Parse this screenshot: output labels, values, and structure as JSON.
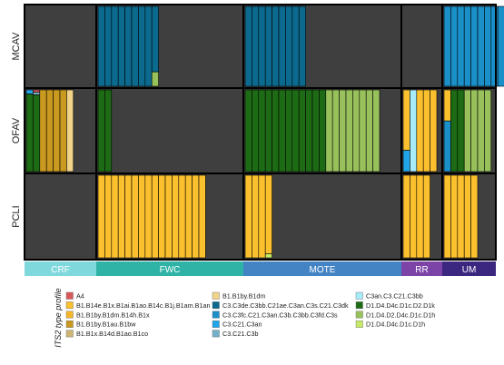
{
  "chart_data": {
    "type": "stacked-bar-panels",
    "rows": [
      "MCAV",
      "OFAV",
      "PCLI"
    ],
    "columns": [
      {
        "name": "CRF",
        "color": "#7fd8dc"
      },
      {
        "name": "FWC",
        "color": "#2fb3a6"
      },
      {
        "name": "MOTE",
        "color": "#4484c4"
      },
      {
        "name": "RR",
        "color": "#7d44a8"
      },
      {
        "name": "UM",
        "color": "#3b2680"
      }
    ],
    "legend_title": "ITS2 type profile",
    "profiles": [
      {
        "name": "A4",
        "color": "#d9595a"
      },
      {
        "name": "B1.B14e.B1x.B1ai.B1ao.B14c.B1j.B1am.B1an",
        "color": "#fbc02d"
      },
      {
        "name": "B1.B1by.B1dm.B14h.B1x",
        "color": "#f5b62a"
      },
      {
        "name": "B1.B1by.B1au.B1bw",
        "color": "#c99a1f"
      },
      {
        "name": "B1.B1x.B14d.B1ao.B1co",
        "color": "#cdb574"
      },
      {
        "name": "B1.B1by.B1dm",
        "color": "#f1d48a"
      },
      {
        "name": "C3.C3de.C3bb.C21ae.C3an.C3s.C21.C3dk",
        "color": "#0b6a8e"
      },
      {
        "name": "C3.C3fc.C21.C3an.C3b.C3bb.C3fd.C3s",
        "color": "#1a8fc8"
      },
      {
        "name": "C3.C21.C3an",
        "color": "#20a6e8"
      },
      {
        "name": "C3.C21.C3b",
        "color": "#74b0c9"
      },
      {
        "name": "C3an.C3.C21.C3bb",
        "color": "#a6ecf9"
      },
      {
        "name": "D1.D4.D4c.D1c.D2.D1k",
        "color": "#1e6b15"
      },
      {
        "name": "D1.D4.D2.D4c.D1c.D1h",
        "color": "#98c15b"
      },
      {
        "name": "D1.D4.D4c.D1c.D1h",
        "color": "#c6ea66"
      }
    ],
    "background_color": "#3f3f3f",
    "panels": [
      {
        "row": 0,
        "col": 0,
        "samples": []
      },
      {
        "row": 0,
        "col": 1,
        "samples": [
          [
            {
              "p": 6,
              "v": 1
            }
          ],
          [
            {
              "p": 6,
              "v": 1
            }
          ],
          [
            {
              "p": 6,
              "v": 1
            }
          ],
          [
            {
              "p": 6,
              "v": 1
            }
          ],
          [
            {
              "p": 6,
              "v": 1
            }
          ],
          [
            {
              "p": 6,
              "v": 1
            }
          ],
          [
            {
              "p": 6,
              "v": 1
            }
          ],
          [
            {
              "p": 6,
              "v": 1
            }
          ],
          [
            {
              "p": 6,
              "v": 0.82
            },
            {
              "p": 12,
              "v": 0.18
            }
          ]
        ]
      },
      {
        "row": 0,
        "col": 2,
        "samples": [
          [
            {
              "p": 6,
              "v": 1
            }
          ],
          [
            {
              "p": 6,
              "v": 1
            }
          ],
          [
            {
              "p": 6,
              "v": 1
            }
          ],
          [
            {
              "p": 6,
              "v": 1
            }
          ],
          [
            {
              "p": 6,
              "v": 1
            }
          ],
          [
            {
              "p": 6,
              "v": 1
            }
          ],
          [
            {
              "p": 6,
              "v": 1
            }
          ],
          [
            {
              "p": 6,
              "v": 1
            }
          ],
          [
            {
              "p": 6,
              "v": 1
            }
          ]
        ]
      },
      {
        "row": 0,
        "col": 3,
        "samples": []
      },
      {
        "row": 0,
        "col": 4,
        "samples": [
          [
            {
              "p": 7,
              "v": 1
            }
          ],
          [
            {
              "p": 7,
              "v": 1
            }
          ],
          [
            {
              "p": 7,
              "v": 1
            }
          ],
          [
            {
              "p": 7,
              "v": 1
            }
          ],
          [
            {
              "p": 7,
              "v": 1
            }
          ],
          [
            {
              "p": 7,
              "v": 1
            }
          ],
          [
            {
              "p": 7,
              "v": 1
            }
          ],
          [
            {
              "p": 7,
              "v": 1
            }
          ],
          [
            {
              "p": 7,
              "v": 1
            }
          ]
        ]
      },
      {
        "row": 1,
        "col": 0,
        "samples": [
          [
            {
              "p": 8,
              "v": 0.05
            },
            {
              "p": 11,
              "v": 0.95
            }
          ],
          [
            {
              "p": 0,
              "v": 0.03
            },
            {
              "p": 9,
              "v": 0.03
            },
            {
              "p": 11,
              "v": 0.94
            }
          ],
          [
            {
              "p": 3,
              "v": 1
            }
          ],
          [
            {
              "p": 3,
              "v": 1
            }
          ],
          [
            {
              "p": 3,
              "v": 1
            }
          ],
          [
            {
              "p": 3,
              "v": 1
            }
          ],
          [
            {
              "p": 5,
              "v": 1
            }
          ]
        ]
      },
      {
        "row": 1,
        "col": 1,
        "samples": [
          [
            {
              "p": 11,
              "v": 1
            }
          ],
          [
            {
              "p": 11,
              "v": 1
            }
          ]
        ]
      },
      {
        "row": 1,
        "col": 2,
        "samples": [
          [
            {
              "p": 11,
              "v": 1
            }
          ],
          [
            {
              "p": 11,
              "v": 1
            }
          ],
          [
            {
              "p": 11,
              "v": 1
            }
          ],
          [
            {
              "p": 11,
              "v": 1
            }
          ],
          [
            {
              "p": 11,
              "v": 1
            }
          ],
          [
            {
              "p": 11,
              "v": 1
            }
          ],
          [
            {
              "p": 11,
              "v": 1
            }
          ],
          [
            {
              "p": 11,
              "v": 1
            }
          ],
          [
            {
              "p": 11,
              "v": 1
            }
          ],
          [
            {
              "p": 11,
              "v": 1
            }
          ],
          [
            {
              "p": 11,
              "v": 1
            }
          ],
          [
            {
              "p": 11,
              "v": 1
            }
          ],
          [
            {
              "p": 12,
              "v": 1
            }
          ],
          [
            {
              "p": 12,
              "v": 1
            }
          ],
          [
            {
              "p": 12,
              "v": 1
            }
          ],
          [
            {
              "p": 12,
              "v": 1
            }
          ],
          [
            {
              "p": 12,
              "v": 1
            }
          ],
          [
            {
              "p": 12,
              "v": 1
            }
          ],
          [
            {
              "p": 12,
              "v": 1
            }
          ],
          [
            {
              "p": 12,
              "v": 1
            }
          ]
        ]
      },
      {
        "row": 1,
        "col": 3,
        "samples": [
          [
            {
              "p": 1,
              "v": 0.74
            },
            {
              "p": 8,
              "v": 0.26
            }
          ],
          [
            {
              "p": 10,
              "v": 1
            }
          ],
          [
            {
              "p": 1,
              "v": 1
            }
          ],
          [
            {
              "p": 1,
              "v": 1
            }
          ],
          [
            {
              "p": 1,
              "v": 1
            }
          ]
        ]
      },
      {
        "row": 1,
        "col": 4,
        "samples": [
          [
            {
              "p": 1,
              "v": 0.38
            },
            {
              "p": 7,
              "v": 0.62
            }
          ],
          [
            {
              "p": 11,
              "v": 1
            }
          ],
          [
            {
              "p": 11,
              "v": 1
            }
          ],
          [
            {
              "p": 12,
              "v": 1
            }
          ],
          [
            {
              "p": 12,
              "v": 1
            }
          ],
          [
            {
              "p": 12,
              "v": 1
            }
          ],
          [
            {
              "p": 12,
              "v": 1
            }
          ]
        ]
      },
      {
        "row": 2,
        "col": 0,
        "samples": []
      },
      {
        "row": 2,
        "col": 1,
        "samples": [
          [
            {
              "p": 1,
              "v": 1
            }
          ],
          [
            {
              "p": 1,
              "v": 1
            }
          ],
          [
            {
              "p": 1,
              "v": 1
            }
          ],
          [
            {
              "p": 1,
              "v": 1
            }
          ],
          [
            {
              "p": 1,
              "v": 1
            }
          ],
          [
            {
              "p": 1,
              "v": 1
            }
          ],
          [
            {
              "p": 1,
              "v": 1
            }
          ],
          [
            {
              "p": 1,
              "v": 1
            }
          ],
          [
            {
              "p": 1,
              "v": 1
            }
          ],
          [
            {
              "p": 1,
              "v": 1
            }
          ],
          [
            {
              "p": 1,
              "v": 1
            }
          ],
          [
            {
              "p": 1,
              "v": 1
            }
          ],
          [
            {
              "p": 1,
              "v": 1
            }
          ],
          [
            {
              "p": 1,
              "v": 1
            }
          ],
          [
            {
              "p": 1,
              "v": 1
            }
          ],
          [
            {
              "p": 1,
              "v": 1
            }
          ]
        ]
      },
      {
        "row": 2,
        "col": 2,
        "samples": [
          [
            {
              "p": 1,
              "v": 1
            }
          ],
          [
            {
              "p": 1,
              "v": 1
            }
          ],
          [
            {
              "p": 1,
              "v": 1
            }
          ],
          [
            {
              "p": 1,
              "v": 0.95
            },
            {
              "p": 13,
              "v": 0.05
            }
          ]
        ]
      },
      {
        "row": 2,
        "col": 3,
        "samples": [
          [
            {
              "p": 1,
              "v": 1
            }
          ],
          [
            {
              "p": 1,
              "v": 1
            }
          ],
          [
            {
              "p": 1,
              "v": 1
            }
          ],
          [
            {
              "p": 1,
              "v": 1
            }
          ]
        ]
      },
      {
        "row": 2,
        "col": 4,
        "samples": [
          [
            {
              "p": 1,
              "v": 1
            }
          ],
          [
            {
              "p": 1,
              "v": 1
            }
          ],
          [
            {
              "p": 1,
              "v": 1
            }
          ],
          [
            {
              "p": 1,
              "v": 1
            }
          ],
          [
            {
              "p": 1,
              "v": 1
            }
          ]
        ]
      }
    ]
  }
}
